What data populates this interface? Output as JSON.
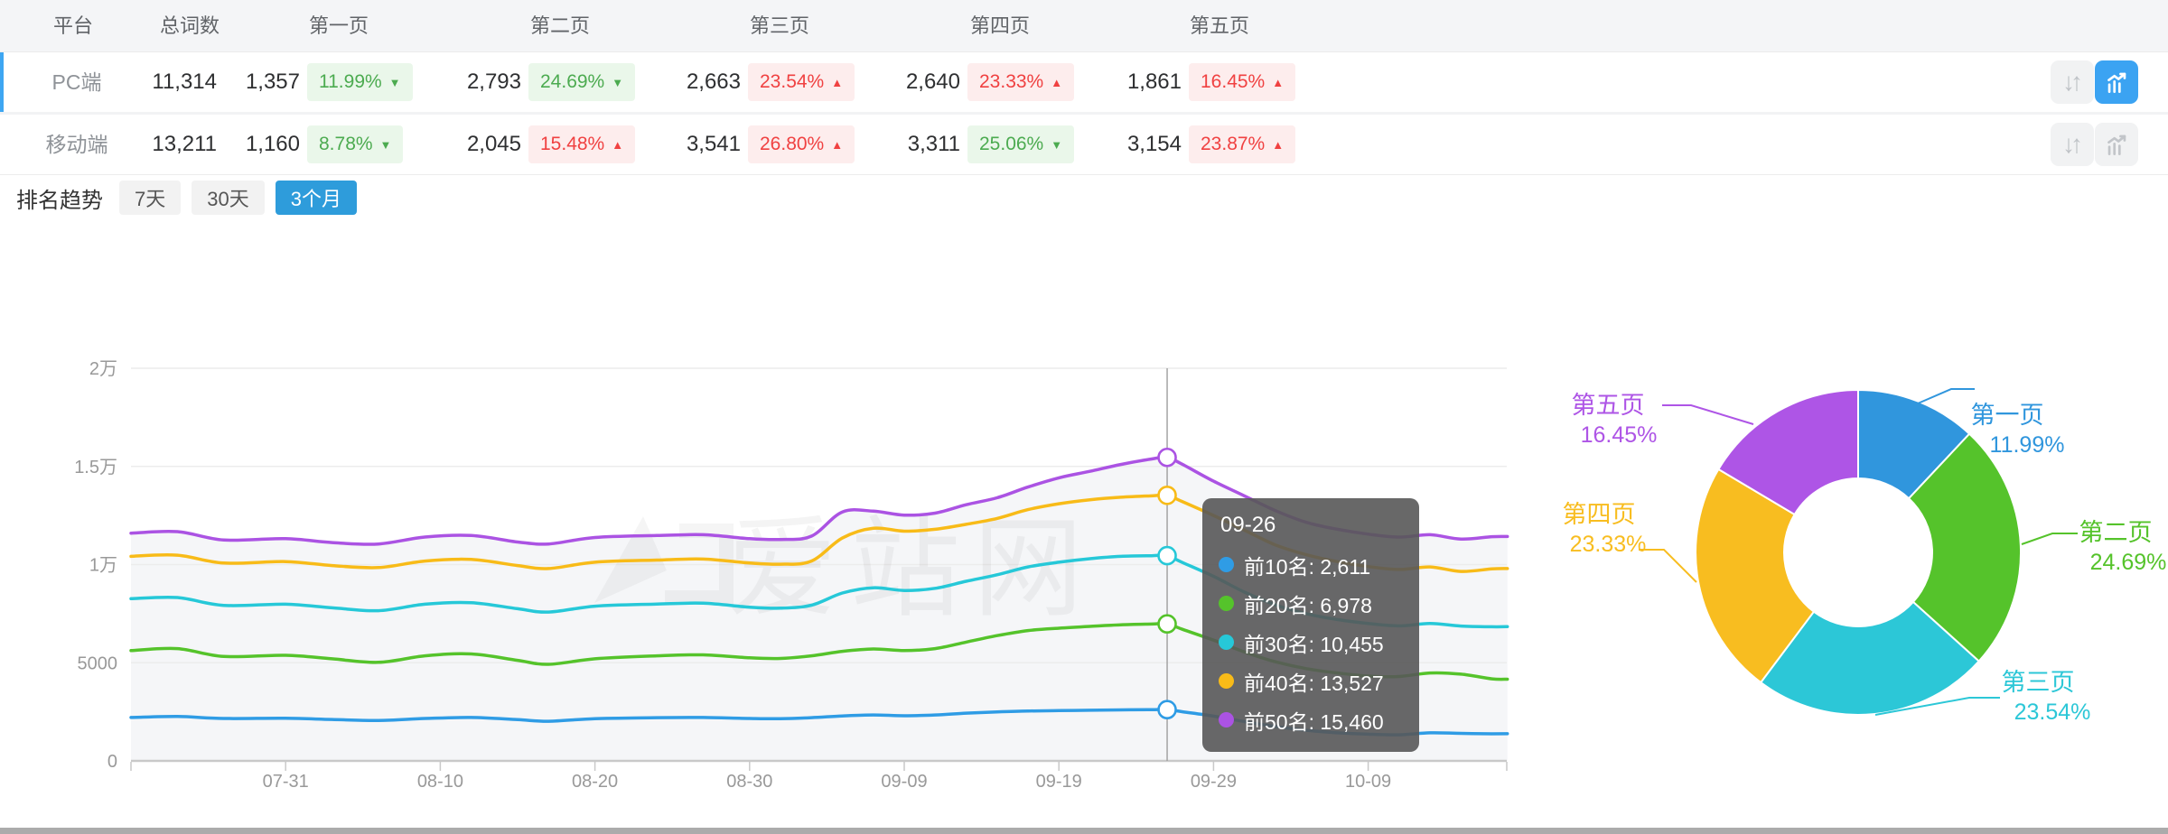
{
  "table": {
    "headers": [
      "平台",
      "总词数",
      "第一页",
      "第二页",
      "第三页",
      "第四页",
      "第五页"
    ],
    "rows": [
      {
        "platform": "PC端",
        "total": "11,314",
        "selected": true,
        "pages": [
          {
            "count": "1,357",
            "pct": "11.99%",
            "dir": "down",
            "tone": "green"
          },
          {
            "count": "2,793",
            "pct": "24.69%",
            "dir": "down",
            "tone": "green"
          },
          {
            "count": "2,663",
            "pct": "23.54%",
            "dir": "up",
            "tone": "red"
          },
          {
            "count": "2,640",
            "pct": "23.33%",
            "dir": "up",
            "tone": "red"
          },
          {
            "count": "1,861",
            "pct": "16.45%",
            "dir": "up",
            "tone": "red"
          }
        ],
        "chart_button_active": true
      },
      {
        "platform": "移动端",
        "total": "13,211",
        "selected": false,
        "pages": [
          {
            "count": "1,160",
            "pct": "8.78%",
            "dir": "down",
            "tone": "green"
          },
          {
            "count": "2,045",
            "pct": "15.48%",
            "dir": "up",
            "tone": "red"
          },
          {
            "count": "3,541",
            "pct": "26.80%",
            "dir": "up",
            "tone": "red"
          },
          {
            "count": "3,311",
            "pct": "25.06%",
            "dir": "down",
            "tone": "green"
          },
          {
            "count": "3,154",
            "pct": "23.87%",
            "dir": "up",
            "tone": "red"
          }
        ],
        "chart_button_active": false
      }
    ]
  },
  "trend": {
    "title": "排名趋势",
    "tabs": [
      {
        "label": "7天",
        "active": false
      },
      {
        "label": "30天",
        "active": false
      },
      {
        "label": "3个月",
        "active": true
      }
    ],
    "watermark": "爱站网"
  },
  "tooltip": {
    "title": "09-26",
    "rows": [
      {
        "label": "前10名",
        "value": "2,611",
        "color": "#2f9ce5"
      },
      {
        "label": "前20名",
        "value": "6,978",
        "color": "#55c32b"
      },
      {
        "label": "前30名",
        "value": "10,455",
        "color": "#26c8d8"
      },
      {
        "label": "前40名",
        "value": "13,527",
        "color": "#f8bb18"
      },
      {
        "label": "前50名",
        "value": "15,460",
        "color": "#ab53e3"
      }
    ]
  },
  "chart_data": [
    {
      "type": "line",
      "title": "排名趋势 (3个月)",
      "xlabel": "",
      "ylabel": "",
      "ylim": [
        0,
        20000
      ],
      "grid": true,
      "legend_position": "none",
      "y_ticks": [
        {
          "value": 0,
          "label": "0"
        },
        {
          "value": 5000,
          "label": "5000"
        },
        {
          "value": 10000,
          "label": "1万"
        },
        {
          "value": 15000,
          "label": "1.5万"
        },
        {
          "value": 20000,
          "label": "2万"
        }
      ],
      "x_tick_labels": [
        "07-31",
        "08-10",
        "08-20",
        "08-30",
        "09-09",
        "09-19",
        "09-29",
        "10-09"
      ],
      "x_range": [
        "07-21",
        "10-18"
      ],
      "highlight_date": "09-26",
      "x": [
        "07-21",
        "07-24",
        "07-27",
        "07-31",
        "08-03",
        "08-06",
        "08-09",
        "08-12",
        "08-15",
        "08-17",
        "08-20",
        "08-24",
        "08-27",
        "08-30",
        "09-01",
        "09-03",
        "09-05",
        "09-07",
        "09-09",
        "09-11",
        "09-13",
        "09-15",
        "09-17",
        "09-19",
        "09-21",
        "09-23",
        "09-25",
        "09-26",
        "09-27",
        "09-29",
        "10-01",
        "10-03",
        "10-05",
        "10-07",
        "10-09",
        "10-11",
        "10-13",
        "10-15",
        "10-17",
        "10-18"
      ],
      "series": [
        {
          "name": "前10名",
          "color": "#2f9ce5",
          "values": [
            2210,
            2260,
            2160,
            2170,
            2110,
            2060,
            2160,
            2210,
            2100,
            2020,
            2150,
            2200,
            2210,
            2160,
            2150,
            2200,
            2290,
            2340,
            2300,
            2340,
            2430,
            2490,
            2540,
            2560,
            2580,
            2600,
            2608,
            2611,
            2500,
            2280,
            2000,
            1750,
            1560,
            1430,
            1360,
            1330,
            1430,
            1400,
            1380,
            1385
          ]
        },
        {
          "name": "前20名",
          "color": "#55c32b",
          "values": [
            5620,
            5720,
            5320,
            5380,
            5200,
            5020,
            5350,
            5450,
            5120,
            4920,
            5200,
            5350,
            5400,
            5250,
            5220,
            5350,
            5580,
            5700,
            5620,
            5720,
            6050,
            6380,
            6640,
            6760,
            6850,
            6930,
            6970,
            6978,
            6700,
            6150,
            5550,
            5050,
            4700,
            4480,
            4320,
            4300,
            4480,
            4420,
            4180,
            4160
          ]
        },
        {
          "name": "前30名",
          "color": "#26c8d8",
          "values": [
            8260,
            8320,
            7920,
            7980,
            7800,
            7650,
            7980,
            8060,
            7750,
            7580,
            7880,
            7990,
            8030,
            7830,
            7780,
            7930,
            8550,
            8820,
            8680,
            8790,
            9150,
            9480,
            9880,
            10120,
            10300,
            10420,
            10450,
            10455,
            10100,
            9400,
            8600,
            7950,
            7500,
            7200,
            7000,
            6880,
            7000,
            6870,
            6830,
            6840
          ]
        },
        {
          "name": "前40名",
          "color": "#f8bb18",
          "values": [
            10420,
            10480,
            10080,
            10150,
            9950,
            9850,
            10180,
            10260,
            9950,
            9800,
            10120,
            10230,
            10280,
            10080,
            10020,
            10180,
            11350,
            11850,
            11700,
            11800,
            12050,
            12350,
            12800,
            13100,
            13300,
            13430,
            13500,
            13527,
            13200,
            12500,
            11750,
            11000,
            10500,
            10150,
            9900,
            9750,
            9880,
            9650,
            9780,
            9800
          ]
        },
        {
          "name": "前50名",
          "color": "#ab53e3",
          "values": [
            11600,
            11680,
            11250,
            11320,
            11120,
            11050,
            11400,
            11480,
            11150,
            11050,
            11380,
            11480,
            11520,
            11320,
            11280,
            11450,
            12680,
            12720,
            12520,
            12620,
            13050,
            13400,
            13950,
            14420,
            14750,
            15100,
            15380,
            15460,
            15100,
            14250,
            13500,
            12750,
            12150,
            11800,
            11550,
            11400,
            11520,
            11300,
            11420,
            11430
          ]
        }
      ]
    },
    {
      "type": "pie",
      "donut": true,
      "slices": [
        {
          "label": "第一页",
          "value": 11.99,
          "percent_label": "11.99%",
          "color": "#3096dd"
        },
        {
          "label": "第二页",
          "value": 24.69,
          "percent_label": "24.69%",
          "color": "#55c32b"
        },
        {
          "label": "第三页",
          "value": 23.54,
          "percent_label": "23.54%",
          "color": "#2cc7d7"
        },
        {
          "label": "第四页",
          "value": 23.33,
          "percent_label": "23.33%",
          "color": "#f8bd20"
        },
        {
          "label": "第五页",
          "value": 16.45,
          "percent_label": "16.45%",
          "color": "#ae55e6"
        }
      ]
    }
  ],
  "icons": {
    "sort_icon": "↓↑",
    "trend_chart_icon": "bars-with-rising-arrow",
    "triangle_up": "▲",
    "triangle_down": "▼"
  },
  "colors": {
    "badge_green": "#4cab50",
    "badge_green_bg": "#eaf7ea",
    "badge_red": "#f04141",
    "badge_red_bg": "#fdeded",
    "tab_blue": "#2e9cdb",
    "row_bar": "#3ea6f2",
    "btn_blue": "#3ba3f2",
    "axis_label": "#999999",
    "grid_line": "#ececec",
    "tooltip_bg": "rgba(88,88,88,0.9)"
  }
}
